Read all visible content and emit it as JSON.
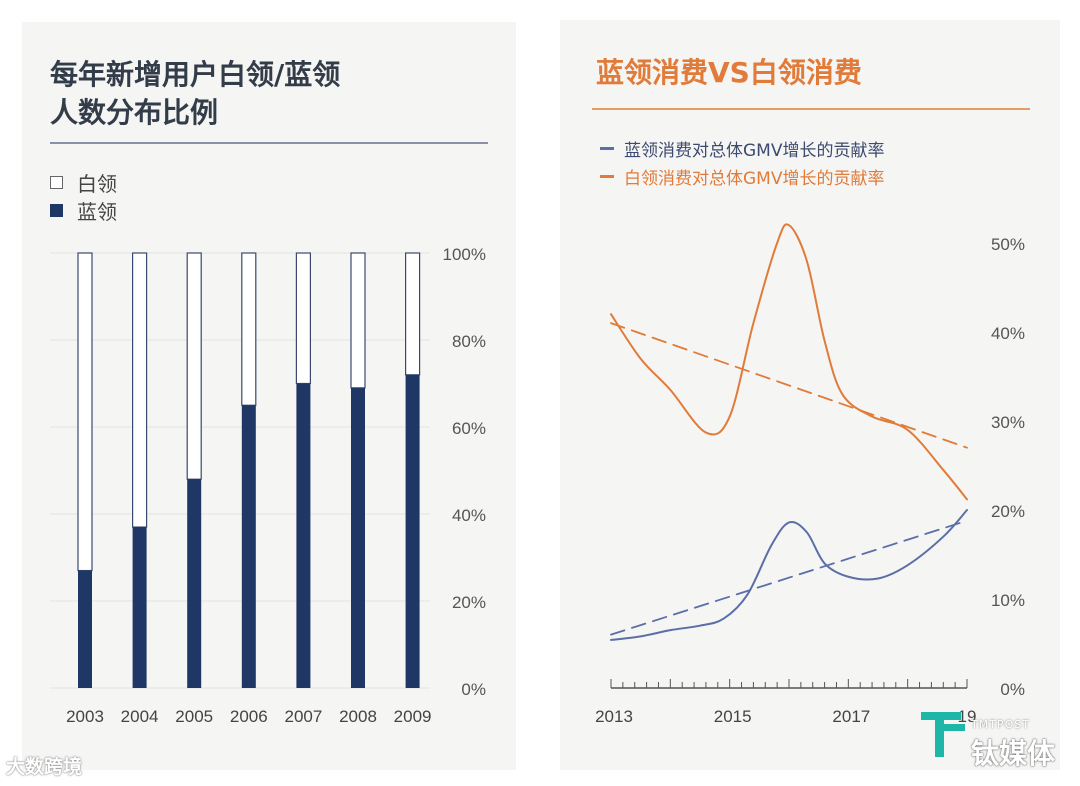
{
  "left": {
    "title_line1": "每年新增用户白领/蓝领",
    "title_line2": "人数分布比例",
    "legend": [
      {
        "label": "白领",
        "color": "#ffffff"
      },
      {
        "label": "蓝领",
        "color": "#1f3764"
      }
    ]
  },
  "right": {
    "title": "蓝领消费VS白领消费",
    "legend": [
      {
        "label": "蓝领消费对总体GMV增长的贡献率",
        "color": "#5b6fa6"
      },
      {
        "label": "白领消费对总体GMV增长的贡献率",
        "color": "#e07b39"
      }
    ]
  },
  "watermarks": {
    "left": "大数跨境",
    "right_small": "TMTPOST",
    "right_logo": "钛媒体"
  },
  "chart_data": [
    {
      "type": "bar",
      "stacked": true,
      "categories": [
        "2003",
        "2004",
        "2005",
        "2006",
        "2007",
        "2008",
        "2009"
      ],
      "series": [
        {
          "name": "蓝领",
          "values": [
            27,
            37,
            48,
            65,
            70,
            69,
            72
          ],
          "color": "#1f3764"
        },
        {
          "name": "白领",
          "values": [
            73,
            63,
            52,
            35,
            30,
            31,
            28
          ],
          "color": "#ffffff"
        }
      ],
      "ylim": [
        0,
        100
      ],
      "yticks": [
        "0%",
        "20%",
        "40%",
        "60%",
        "80%",
        "100%"
      ],
      "ytick_values": [
        0,
        20,
        40,
        60,
        80,
        100
      ]
    },
    {
      "type": "line",
      "xlim": [
        2013,
        2019
      ],
      "ylim": [
        0,
        53
      ],
      "xticks": [
        "2013",
        "2015",
        "2017",
        "19"
      ],
      "xtick_values": [
        2013,
        2015,
        2017,
        2019
      ],
      "yticks": [
        "0%",
        "10%",
        "20%",
        "30%",
        "40%",
        "50%"
      ],
      "ytick_values": [
        0,
        10,
        20,
        30,
        40,
        50
      ],
      "series": [
        {
          "name": "白领消费对总体GMV增长的贡献率",
          "color": "#e07b39",
          "x": [
            2013.0,
            2013.5,
            2014.0,
            2014.6,
            2015.0,
            2015.4,
            2015.8,
            2016.0,
            2016.3,
            2016.6,
            2016.9,
            2017.4,
            2018.0,
            2018.6,
            2019.0
          ],
          "y": [
            42.0,
            37.0,
            33.5,
            28.7,
            30.5,
            41.0,
            50.0,
            52.0,
            48.0,
            39.0,
            33.0,
            30.5,
            29.0,
            24.5,
            21.2
          ]
        },
        {
          "name": "蓝领消费对总体GMV增长的贡献率",
          "color": "#5b6fa6",
          "x": [
            2013.0,
            2013.5,
            2014.0,
            2014.5,
            2014.9,
            2015.3,
            2015.7,
            2016.0,
            2016.3,
            2016.6,
            2017.0,
            2017.5,
            2018.0,
            2018.6,
            2019.0
          ],
          "y": [
            5.4,
            5.8,
            6.5,
            7.0,
            7.8,
            10.5,
            16.0,
            18.6,
            17.5,
            14.0,
            12.5,
            12.3,
            13.8,
            17.0,
            20.0
          ]
        },
        {
          "name": "白领趋势线",
          "color": "#e07b39",
          "dashed": true,
          "x": [
            2013.0,
            2019.0
          ],
          "y": [
            41.0,
            27.0
          ]
        },
        {
          "name": "蓝领趋势线",
          "color": "#5b6fa6",
          "dashed": true,
          "x": [
            2013.0,
            2019.0
          ],
          "y": [
            6.0,
            18.8
          ]
        }
      ]
    }
  ]
}
